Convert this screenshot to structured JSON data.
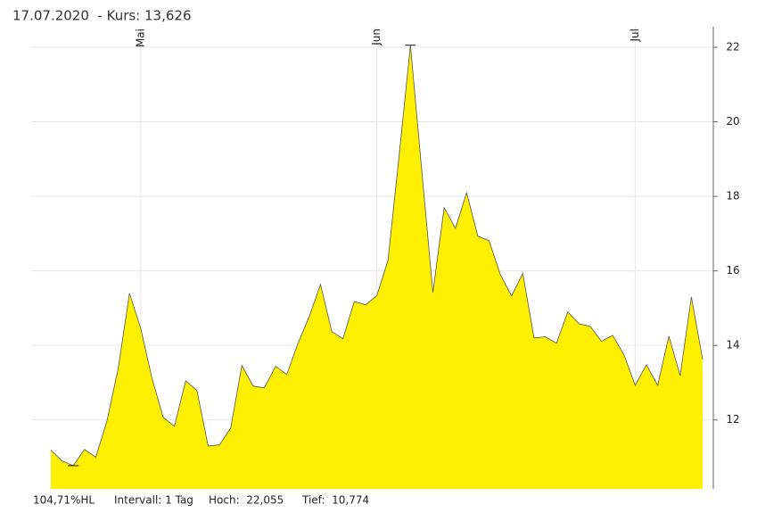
{
  "header": "17.07.2020  - Kurs: 13,626",
  "footer": [
    "104,71%HL",
    "Intervall: 1 Tag",
    "Hoch:  22,055",
    "Tief:  10,774"
  ],
  "chart_data": {
    "type": "area",
    "color": "#ffef00",
    "line_color": "#555555",
    "categories": [
      null,
      null,
      null,
      null,
      null,
      null,
      null,
      null,
      "Mai",
      null,
      null,
      null,
      null,
      null,
      null,
      null,
      null,
      null,
      null,
      null,
      null,
      null,
      null,
      null,
      null,
      null,
      null,
      null,
      null,
      "Jun",
      null,
      null,
      null,
      null,
      null,
      null,
      null,
      null,
      null,
      null,
      null,
      null,
      null,
      null,
      null,
      null,
      null,
      null,
      null,
      null,
      null,
      null,
      "Jul",
      null,
      null,
      null,
      null,
      null,
      null
    ],
    "values": [
      11.19,
      10.9,
      10.774,
      11.21,
      11.0,
      11.98,
      13.39,
      15.4,
      14.46,
      13.12,
      12.07,
      11.83,
      13.05,
      12.79,
      11.3,
      11.33,
      11.78,
      13.46,
      12.91,
      12.86,
      13.44,
      13.22,
      14.06,
      14.78,
      15.64,
      14.37,
      14.18,
      15.18,
      15.09,
      15.33,
      16.28,
      19.11,
      22.055,
      18.72,
      15.42,
      17.7,
      17.14,
      18.1,
      16.93,
      16.81,
      15.9,
      15.33,
      15.93,
      14.2,
      14.23,
      14.06,
      14.9,
      14.58,
      14.51,
      14.11,
      14.27,
      13.75,
      12.93,
      13.48,
      12.93,
      14.25,
      13.19,
      15.3,
      13.626
    ],
    "ylim": [
      10.15,
      22.55
    ],
    "yticks": [
      12,
      14,
      16,
      18,
      20,
      22
    ],
    "grid": true
  }
}
